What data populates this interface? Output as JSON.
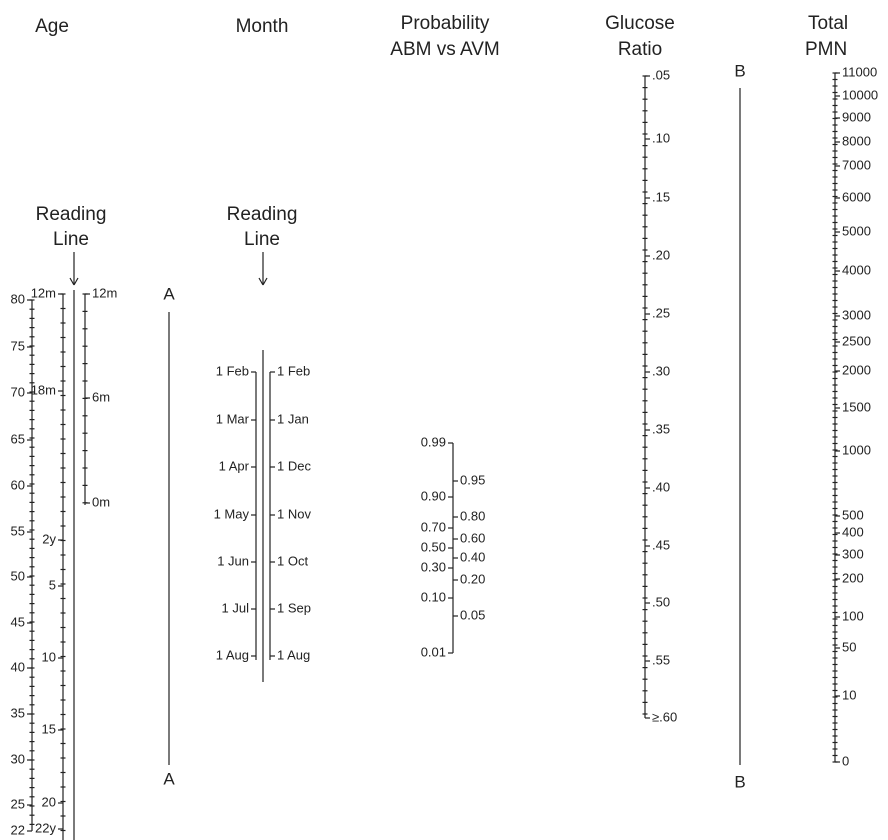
{
  "headers": {
    "age": "Age",
    "month": "Month",
    "probability": {
      "line1": "Probability",
      "line2": "ABM vs AVM"
    },
    "glucose": {
      "line1": "Glucose",
      "line2": "Ratio"
    },
    "pmn": {
      "line1": "Total",
      "line2": "PMN"
    }
  },
  "reading_lines": [
    {
      "line1": "Reading",
      "line2": "Line"
    },
    {
      "line1": "Reading",
      "line2": "Line"
    }
  ],
  "line_labels": {
    "a_top": "A",
    "a_bottom": "A",
    "b_top": "B",
    "b_bottom": "B"
  },
  "scales": {
    "age": [
      "80",
      "75",
      "70",
      "65",
      "60",
      "55",
      "50",
      "45",
      "40",
      "35",
      "30",
      "25",
      "22"
    ],
    "age_months_left": [
      "12m",
      "18m",
      "2y",
      "5",
      "10",
      "15",
      "20",
      "22y"
    ],
    "age_months_right": [
      "12m",
      "6m",
      "0m"
    ],
    "month_left": [
      "1 Feb",
      "1 Mar",
      "1 Apr",
      "1 May",
      "1 Jun",
      "1 Jul",
      "1 Aug"
    ],
    "month_right": [
      "1 Feb",
      "1 Jan",
      "1 Dec",
      "1 Nov",
      "1 Oct",
      "1 Sep",
      "1 Aug"
    ],
    "probability_left": [
      "0.99",
      "0.90",
      "0.70",
      "0.50",
      "0.30",
      "0.10",
      "0.01"
    ],
    "probability_right": [
      "0.95",
      "0.80",
      "0.60",
      "0.40",
      "0.20",
      "0.05"
    ],
    "glucose": [
      ".05",
      ".10",
      ".15",
      ".20",
      ".25",
      ".30",
      ".35",
      ".40",
      ".45",
      ".50",
      ".55",
      "≥.60"
    ],
    "pmn": [
      "11000",
      "10000",
      "9000",
      "8000",
      "7000",
      "6000",
      "5000",
      "4000",
      "3000",
      "2500",
      "2000",
      "1500",
      "1000",
      "500",
      "400",
      "300",
      "200",
      "100",
      "50",
      "10",
      "0"
    ]
  }
}
